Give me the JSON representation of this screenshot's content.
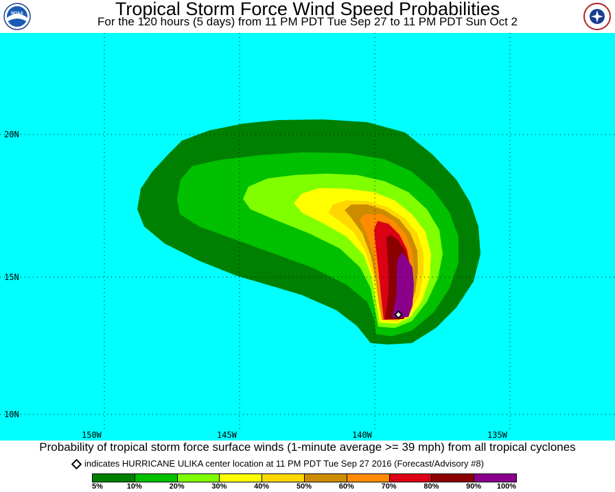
{
  "header": {
    "title": "Tropical Storm Force Wind Speed Probabilities",
    "subtitle": "For the 120 hours (5 days) from 11 PM PDT Tue Sep 27 to 11 PM PDT Sun Oct 2",
    "left_logo_text": "NOAA",
    "right_logo_text": "NATIONAL WEATHER SERVICE"
  },
  "map": {
    "ocean_color": "#00ffff",
    "grid_lat_labels": [
      "20N",
      "15N",
      "10N"
    ],
    "grid_lon_labels": [
      "150W",
      "145W",
      "140W",
      "135W"
    ],
    "storm_center_marker": "diamond"
  },
  "caption": "Probability of tropical storm force surface winds (1-minute average >= 39 mph) from all tropical cyclones",
  "note": "indicates HURRICANE ULIKA center location at 11 PM PDT Tue Sep 27 2016 (Forecast/Advisory #8)",
  "legend": {
    "colors": [
      "#008000",
      "#00c000",
      "#80ff00",
      "#ffff00",
      "#ffd700",
      "#cd8c00",
      "#ff8c00",
      "#dc0014",
      "#8b0000",
      "#8b008b"
    ],
    "labels": [
      "5%",
      "10%",
      "20%",
      "30%",
      "40%",
      "50%",
      "60%",
      "70%",
      "80%",
      "90%",
      "100%"
    ]
  }
}
